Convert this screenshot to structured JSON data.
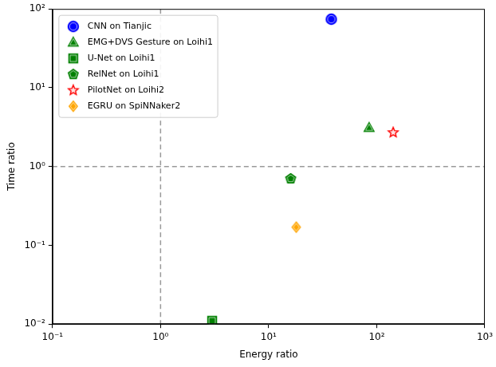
{
  "chart_data": {
    "type": "scatter",
    "x_label": "Energy ratio",
    "y_label": "Time ratio",
    "log": true,
    "grid": false,
    "legend": "upper left",
    "xlim": [
      0.1,
      1000
    ],
    "ylim": [
      0.01,
      100
    ],
    "xticks": [
      {
        "value": 0.1,
        "label": "10⁻¹"
      },
      {
        "value": 1,
        "label": "10⁰"
      },
      {
        "value": 10,
        "label": "10¹"
      },
      {
        "value": 100,
        "label": "10²"
      },
      {
        "value": 1000,
        "label": "10³"
      }
    ],
    "yticks": [
      {
        "value": 0.01,
        "label": "10⁻²"
      },
      {
        "value": 0.1,
        "label": "10⁻¹"
      },
      {
        "value": 1,
        "label": "10⁰"
      },
      {
        "value": 10,
        "label": "10¹"
      },
      {
        "value": 100,
        "label": "10²"
      }
    ],
    "reference_lines": {
      "x": [
        1
      ],
      "y": [
        1
      ]
    },
    "series": [
      {
        "name": "CNN on Tianjic",
        "color": "#0000ff",
        "marker": "circle",
        "x": [
          38
        ],
        "values": [
          74
        ]
      },
      {
        "name": "EMG+DVS Gesture on Loihi1",
        "color": "#008000",
        "marker": "triangle",
        "x": [
          85
        ],
        "values": [
          3.1
        ]
      },
      {
        "name": "U-Net on Loihi1",
        "color": "#008000",
        "marker": "square",
        "x": [
          3
        ],
        "values": [
          0.011
        ]
      },
      {
        "name": "RelNet on Loihi1",
        "color": "#008000",
        "marker": "pentagon",
        "x": [
          16
        ],
        "values": [
          0.7
        ]
      },
      {
        "name": "PilotNet on Loihi2",
        "color": "#ff0000",
        "marker": "star",
        "x": [
          142
        ],
        "values": [
          2.7
        ]
      },
      {
        "name": "EGRU on SpiNNaker2",
        "color": "#ffa500",
        "marker": "diamond",
        "x": [
          18
        ],
        "values": [
          0.17
        ]
      }
    ]
  }
}
